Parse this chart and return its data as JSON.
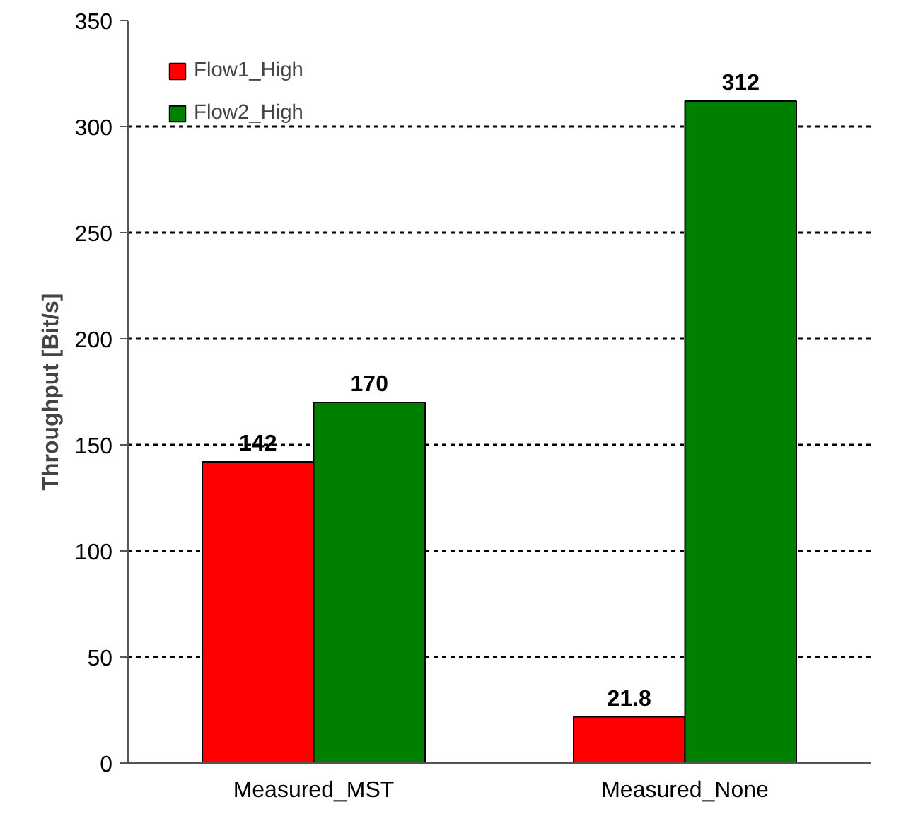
{
  "chart_data": {
    "type": "bar",
    "ylabel": "Throughput [Bit/s]",
    "categories": [
      "Measured_MST",
      "Measured_None"
    ],
    "series": [
      {
        "name": "Flow1_High",
        "color": "#ff0000",
        "values": [
          142,
          21.8
        ]
      },
      {
        "name": "Flow2_High",
        "color": "#008000",
        "values": [
          170,
          312
        ]
      }
    ],
    "ylim": [
      0,
      350
    ],
    "yticks": [
      0,
      50,
      100,
      150,
      200,
      250,
      300,
      350
    ],
    "grid": "y",
    "legend": "top left",
    "data_labels": true
  }
}
